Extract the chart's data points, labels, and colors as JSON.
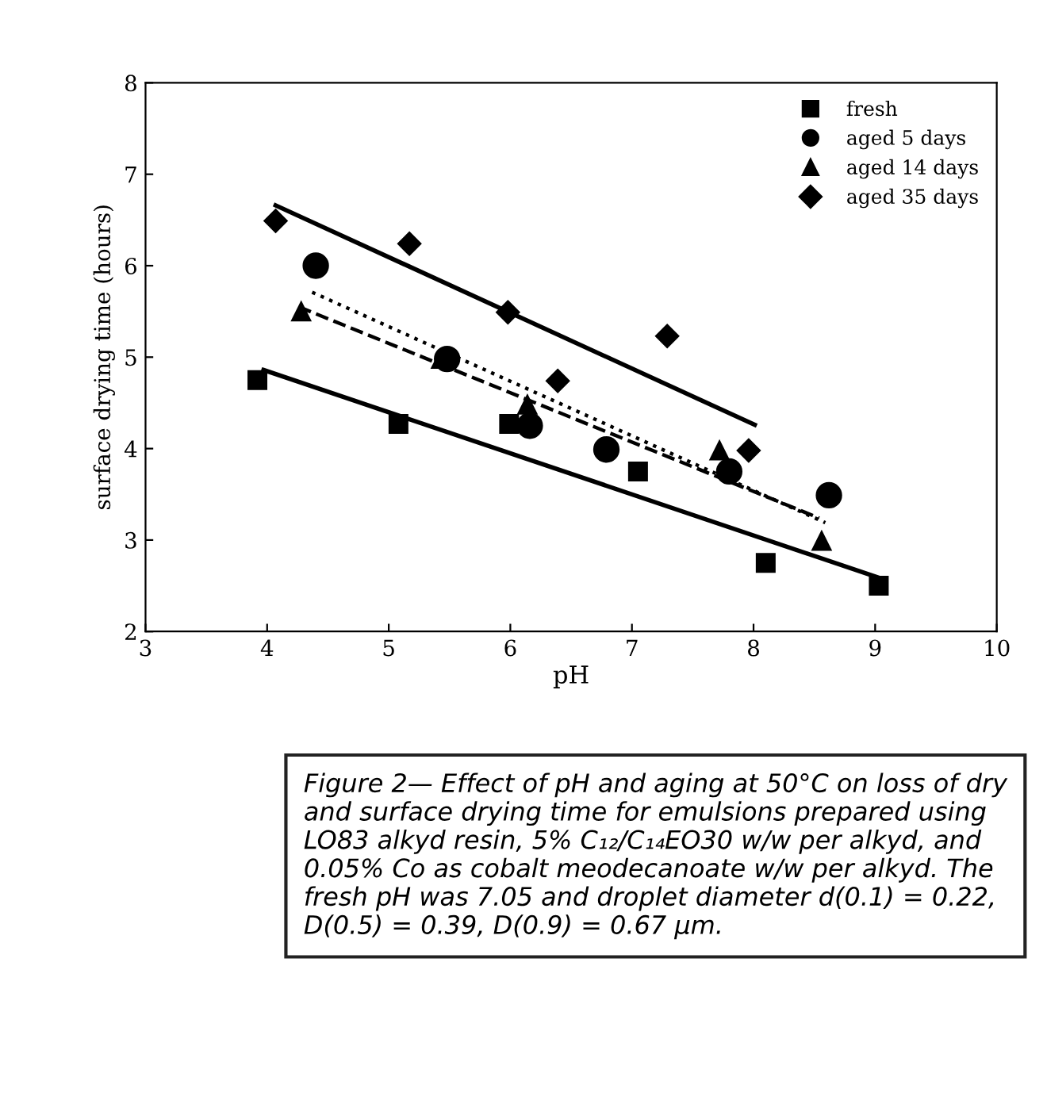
{
  "chart_data": {
    "type": "scatter",
    "xlabel": "pH",
    "ylabel": "surface drying time (hours)",
    "xlim": [
      3,
      10
    ],
    "ylim": [
      2,
      8
    ],
    "xticks": [
      3,
      4,
      5,
      6,
      7,
      8,
      9,
      10
    ],
    "yticks": [
      2,
      3,
      4,
      5,
      6,
      7,
      8
    ],
    "grid": false,
    "legend": "top right",
    "series": [
      {
        "name": "fresh",
        "marker": "square",
        "color": "#000000",
        "x": [
          3.92,
          5.08,
          5.99,
          7.05,
          8.1,
          9.03
        ],
        "values": [
          4.75,
          4.27,
          4.27,
          3.75,
          2.75,
          2.5
        ]
      },
      {
        "name": "aged 5 days",
        "marker": "circle",
        "color": "#000000",
        "x": [
          4.4,
          5.48,
          6.16,
          6.79,
          7.8,
          8.62
        ],
        "values": [
          6.0,
          4.98,
          4.25,
          3.99,
          3.75,
          3.49
        ]
      },
      {
        "name": "aged 14 days",
        "marker": "triangle",
        "color": "#000000",
        "x": [
          4.28,
          5.43,
          6.14,
          7.72,
          8.56
        ],
        "values": [
          5.5,
          4.98,
          4.48,
          3.98,
          2.99
        ]
      },
      {
        "name": "aged 35 days",
        "marker": "diamond",
        "color": "#000000",
        "x": [
          4.07,
          5.17,
          5.98,
          6.39,
          7.29,
          7.96
        ],
        "values": [
          6.49,
          6.24,
          5.49,
          4.74,
          5.23,
          3.98
        ]
      },
      {
        "type": "line",
        "line_style": "solid",
        "color": "#000000",
        "x": [
          3.97,
          9.07
        ],
        "values": [
          4.86,
          2.57
        ]
      },
      {
        "type": "line",
        "line_style": "dotted",
        "color": "#000000",
        "x": [
          4.37,
          8.59
        ],
        "values": [
          5.71,
          3.19
        ]
      },
      {
        "type": "line",
        "line_style": "dashed",
        "color": "#000000",
        "x": [
          4.26,
          8.54
        ],
        "values": [
          5.55,
          3.24
        ]
      },
      {
        "type": "line",
        "line_style": "solid",
        "color": "#000000",
        "x": [
          4.07,
          8.01
        ],
        "values": [
          6.66,
          4.26
        ]
      }
    ],
    "annotations": [
      "Figure 2— Effect of pH and aging at 50°C on loss of dry and surface drying time for emulsions prepared using LO83 alkyd resin, 5% C₁₂/C₁₄EO30 w/w per alkyd, and 0.05% Co as cobalt meodecanoate w/w per alkyd. The fresh pH was 7.05 and droplet diameter d(0.1) = 0.22, D(0.5) = 0.39, D(0.9) = 0.67 µm."
    ]
  }
}
